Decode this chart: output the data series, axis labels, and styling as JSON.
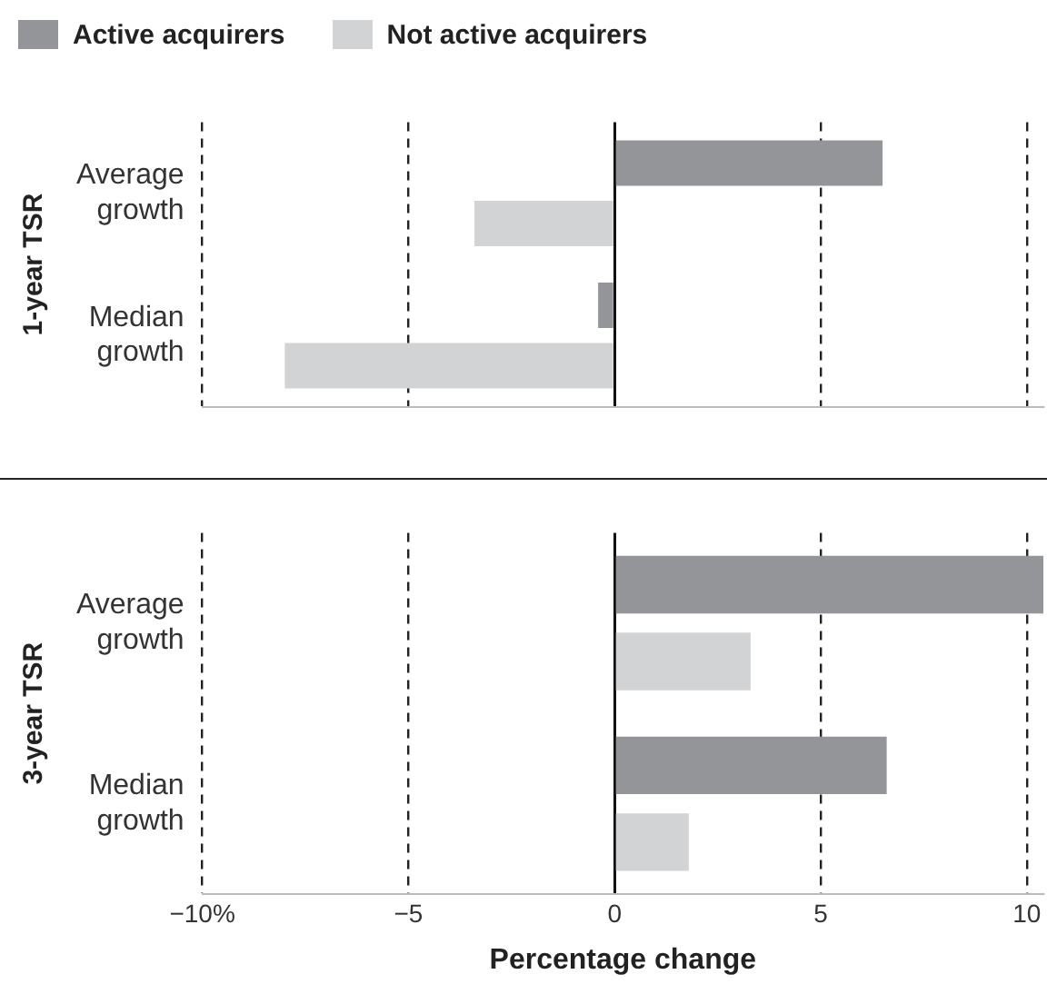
{
  "chart_data": [
    {
      "type": "bar",
      "orientation": "horizontal",
      "ylabel": "1-year TSR",
      "categories": [
        "Average growth",
        "Median growth"
      ],
      "series": [
        {
          "name": "Active acquirers",
          "color": "#939598",
          "values": [
            6.5,
            -0.4
          ]
        },
        {
          "name": "Not active acquirers",
          "color": "#d1d3d4",
          "values": [
            -3.4,
            -8.0
          ]
        }
      ],
      "xlim": [
        -10,
        10.4
      ],
      "xticks": [
        -10,
        -5,
        0,
        5,
        10
      ],
      "grid": "x",
      "legend": "top left",
      "tick_labels": "y"
    },
    {
      "type": "bar",
      "orientation": "horizontal",
      "ylabel": "3-year TSR",
      "xlabel": "Percentage change",
      "categories": [
        "Average growth",
        "Median growth"
      ],
      "series": [
        {
          "color": "#939598",
          "values": [
            10.4,
            6.6
          ]
        },
        {
          "color": "#d1d3d4",
          "values": [
            3.3,
            1.8
          ]
        }
      ],
      "xlim": [
        -10,
        10.4
      ],
      "xticks": [
        {
          "value": -10,
          "label": "−10%"
        },
        {
          "value": -5,
          "label": "−5"
        },
        0,
        5,
        10
      ],
      "grid": "x"
    }
  ]
}
